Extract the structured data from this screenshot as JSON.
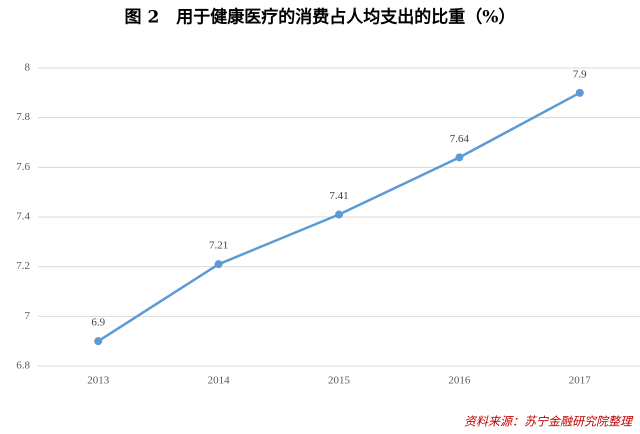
{
  "chart_data": {
    "type": "line",
    "title": "图 2　用于健康医疗的消费占人均支出的比重（%）",
    "categories": [
      "2013",
      "2014",
      "2015",
      "2016",
      "2017"
    ],
    "series": [
      {
        "name": "比重",
        "color": "#5b9bd5",
        "values": [
          6.9,
          7.21,
          7.41,
          7.64,
          7.9
        ]
      }
    ],
    "ylim": [
      6.8,
      8
    ],
    "yticks": [
      6.8,
      7,
      7.2,
      7.4,
      7.6,
      7.8,
      8
    ],
    "grid": true,
    "source": "资料来源：苏宁金融研究院整理"
  }
}
